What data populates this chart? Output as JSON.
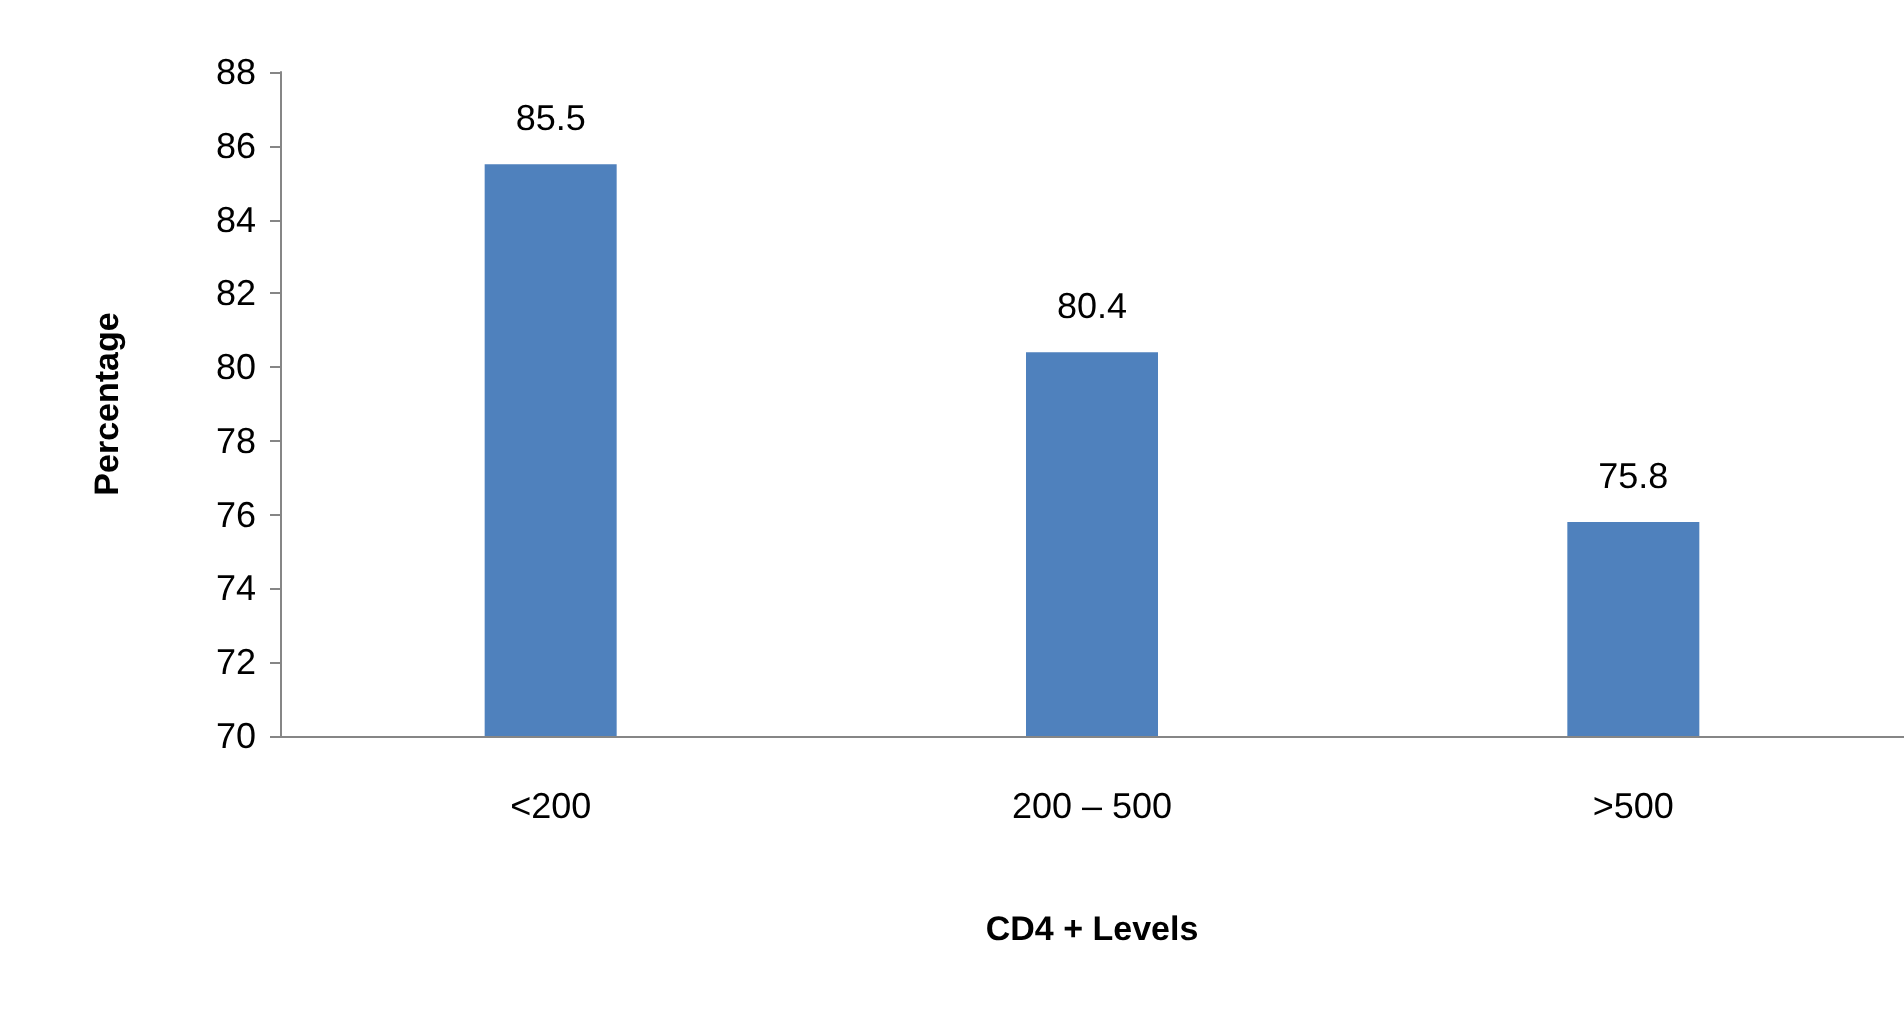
{
  "chart_data": {
    "type": "bar",
    "xlabel": "CD4 + Levels",
    "ylabel": "Percentage",
    "categories": [
      "<200",
      "200 – 500",
      ">500"
    ],
    "values": [
      85.5,
      80.4,
      75.8
    ],
    "color": "#4f81bd",
    "ylim": [
      70,
      88
    ],
    "yticks": [
      70,
      72,
      74,
      76,
      78,
      80,
      82,
      84,
      86,
      88
    ],
    "grid": false,
    "data_labels": true
  }
}
